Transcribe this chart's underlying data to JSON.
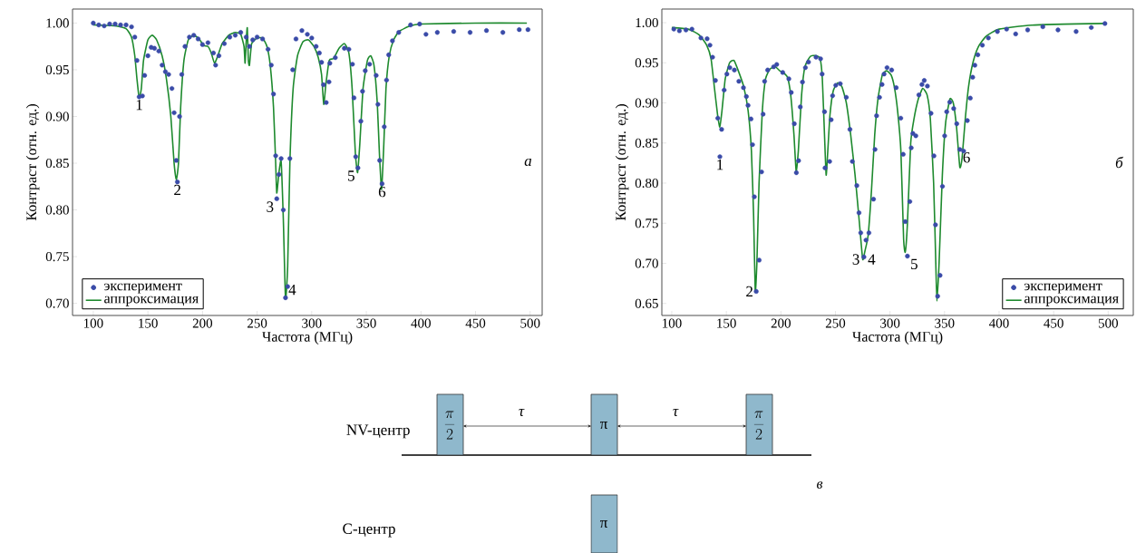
{
  "chart_data": [
    {
      "type": "scatter",
      "xlabel": "Частота (МГц)",
      "ylabel": "Контраст (отн. ед.)",
      "xlim": [
        81,
        511
      ],
      "ylim": [
        0.687,
        1.015
      ],
      "xticks": [
        100,
        150,
        200,
        250,
        300,
        350,
        400,
        450,
        500
      ],
      "yticks": [
        {
          "value": 0.7,
          "label": "0.70"
        },
        {
          "value": 0.75,
          "label": "0.75"
        },
        {
          "value": 0.8,
          "label": "0.80"
        },
        {
          "value": 0.85,
          "label": "0.85"
        },
        {
          "value": 0.9,
          "label": "0.90"
        },
        {
          "value": 0.95,
          "label": "0.95"
        },
        {
          "value": 1.0,
          "label": "1.00"
        }
      ],
      "grid": false,
      "legend": "bottom left",
      "series": [
        {
          "name": "эксперимент",
          "type": "scatter",
          "color": "#3a4ba8",
          "x": [
            100,
            105,
            110,
            115,
            120,
            125,
            130,
            135,
            138,
            140,
            142,
            145,
            147,
            150,
            153,
            156,
            160,
            163,
            166,
            169,
            172,
            174,
            176,
            177,
            179,
            181,
            184,
            188,
            192,
            196,
            200,
            205,
            210,
            212,
            215,
            220,
            225,
            230,
            235,
            240,
            243,
            246,
            250,
            255,
            260,
            263,
            265,
            267,
            268,
            270,
            272,
            274,
            276,
            278,
            280,
            282.6,
            285.6,
            291,
            296,
            300,
            304,
            307,
            309,
            310.8,
            313.3,
            315.8,
            316.6,
            321.6,
            329.9,
            334,
            337.3,
            338.7,
            340.3,
            342.3,
            345,
            346.5,
            349,
            353,
            359,
            360.6,
            362.2,
            364.4,
            366.4,
            368.5,
            370.5,
            373.9,
            379.7,
            390.5,
            398.8,
            404.6,
            415,
            430,
            445,
            460,
            475,
            490,
            498
          ],
          "values": [
            1.0,
            0.998,
            0.997,
            0.999,
            0.999,
            0.998,
            0.998,
            0.996,
            0.985,
            0.96,
            0.921,
            0.922,
            0.944,
            0.965,
            0.974,
            0.973,
            0.97,
            0.955,
            0.948,
            0.945,
            0.93,
            0.904,
            0.853,
            0.83,
            0.9,
            0.945,
            0.975,
            0.985,
            0.987,
            0.983,
            0.977,
            0.979,
            0.968,
            0.955,
            0.965,
            0.978,
            0.985,
            0.987,
            0.99,
            0.985,
            0.975,
            0.982,
            0.985,
            0.983,
            0.972,
            0.955,
            0.924,
            0.858,
            0.812,
            0.838,
            0.855,
            0.8,
            0.706,
            0.718,
            0.855,
            0.95,
            0.983,
            0.992,
            0.988,
            0.984,
            0.975,
            0.968,
            0.958,
            0.934,
            0.915,
            0.937,
            0.957,
            0.963,
            0.973,
            0.972,
            0.956,
            0.92,
            0.857,
            0.845,
            0.895,
            0.927,
            0.949,
            0.956,
            0.944,
            0.913,
            0.853,
            0.828,
            0.889,
            0.939,
            0.966,
            0.981,
            0.99,
            0.998,
            0.999,
            0.988,
            0.99,
            0.991,
            0.99,
            0.992,
            0.99,
            0.993,
            0.993
          ]
        },
        {
          "name": "аппроксимация",
          "type": "line",
          "color": "#1e8a2e",
          "x": [
            100,
            120,
            130,
            135,
            138,
            140,
            142,
            144,
            146,
            150,
            154,
            158,
            163,
            167,
            171,
            174,
            176,
            178,
            180,
            183,
            187,
            192,
            197,
            201,
            205,
            208,
            211,
            214,
            218,
            224,
            230,
            235,
            238,
            239,
            240,
            241,
            242,
            243,
            245,
            250,
            255,
            259,
            262,
            265,
            267,
            268,
            270,
            272,
            274,
            276,
            278,
            280,
            283,
            287,
            292,
            297,
            302,
            306,
            309,
            311,
            313,
            316,
            320,
            325,
            330,
            334,
            337,
            340,
            342,
            344,
            347,
            351,
            354,
            357,
            360,
            362,
            364,
            366,
            368,
            371,
            375,
            380,
            390,
            400,
            450,
            497
          ],
          "values": [
            0.998,
            0.997,
            0.994,
            0.985,
            0.965,
            0.94,
            0.92,
            0.93,
            0.96,
            0.982,
            0.987,
            0.982,
            0.965,
            0.94,
            0.9,
            0.85,
            0.832,
            0.85,
            0.91,
            0.96,
            0.982,
            0.987,
            0.983,
            0.976,
            0.975,
            0.968,
            0.957,
            0.965,
            0.978,
            0.987,
            0.99,
            0.988,
            0.975,
            0.957,
            0.98,
            0.995,
            0.96,
            0.955,
            0.978,
            0.984,
            0.984,
            0.975,
            0.955,
            0.91,
            0.85,
            0.818,
            0.84,
            0.852,
            0.79,
            0.705,
            0.74,
            0.85,
            0.93,
            0.965,
            0.98,
            0.982,
            0.975,
            0.963,
            0.945,
            0.913,
            0.935,
            0.96,
            0.962,
            0.973,
            0.978,
            0.968,
            0.93,
            0.86,
            0.84,
            0.87,
            0.93,
            0.96,
            0.965,
            0.955,
            0.915,
            0.86,
            0.822,
            0.87,
            0.93,
            0.965,
            0.982,
            0.991,
            0.997,
            0.999,
            1.0,
            1.0
          ]
        }
      ],
      "annotations": [
        {
          "text": "1",
          "x": 142,
          "y": 0.921
        },
        {
          "text": "2",
          "x": 177,
          "y": 0.83
        },
        {
          "text": "3",
          "x": 268,
          "y": 0.812
        },
        {
          "text": "4",
          "x": 276,
          "y": 0.706
        },
        {
          "text": "5",
          "x": 342.3,
          "y": 0.845
        },
        {
          "text": "6",
          "x": 364.4,
          "y": 0.828
        },
        "а"
      ]
    },
    {
      "type": "scatter",
      "xlabel": "Частота (МГц)",
      "ylabel": "Контраст (отн. ед.)",
      "xlim": [
        90.9,
        523
      ],
      "ylim": [
        0.635,
        1.017
      ],
      "xticks": [
        100,
        150,
        200,
        250,
        300,
        350,
        400,
        450,
        500
      ],
      "yticks": [
        {
          "value": 0.65,
          "label": "0.65"
        },
        {
          "value": 0.7,
          "label": "0.70"
        },
        {
          "value": 0.75,
          "label": "0.75"
        },
        {
          "value": 0.8,
          "label": "0.80"
        },
        {
          "value": 0.85,
          "label": "0.85"
        },
        {
          "value": 0.9,
          "label": "0.90"
        },
        {
          "value": 0.95,
          "label": "0.95"
        },
        {
          "value": 1.0,
          "label": "1.00"
        }
      ],
      "grid": false,
      "legend": "bottom right",
      "series": [
        {
          "name": "эксперимент",
          "type": "scatter",
          "color": "#3a4ba8",
          "x": [
            101.9,
            107,
            113,
            118.5,
            126.7,
            132.4,
            135,
            137.4,
            140,
            142.2,
            144.1,
            145.7,
            148,
            150.5,
            153.2,
            157.4,
            161.5,
            165.7,
            168.4,
            169.9,
            172.6,
            174,
            175.7,
            177.4,
            180.1,
            182.3,
            183.7,
            185.1,
            187.9,
            193.4,
            196.2,
            201.7,
            207.3,
            209.5,
            212.3,
            214.2,
            216.2,
            217.8,
            219.8,
            222.5,
            225.3,
            232.2,
            236.4,
            237.8,
            240,
            240.5,
            244.7,
            246.1,
            247.4,
            250.3,
            254.4,
            260,
            263.3,
            265.5,
            269.6,
            271.6,
            273.2,
            276.1,
            278,
            280.7,
            284.9,
            286.3,
            287.7,
            290.4,
            292.7,
            294.6,
            297.3,
            301.5,
            305.7,
            309.9,
            312.1,
            314,
            316,
            318.2,
            319.5,
            321,
            323.7,
            326.5,
            329.3,
            331.4,
            334.3,
            337.6,
            340.3,
            341.7,
            343.7,
            345.9,
            348.1,
            350.1,
            352,
            354.8,
            358.4,
            361.2,
            364,
            367.5,
            370.9,
            373.6,
            375.8,
            377.8,
            380.5,
            384.7,
            390.2,
            398.5,
            406.9,
            415.2,
            426.2,
            440.1,
            454,
            470.6,
            484.5,
            497
          ],
          "values": [
            0.992,
            0.99,
            0.991,
            0.992,
            0.981,
            0.98,
            0.972,
            0.957,
            0.928,
            0.881,
            0.833,
            0.867,
            0.916,
            0.936,
            0.944,
            0.941,
            0.927,
            0.919,
            0.908,
            0.897,
            0.88,
            0.848,
            0.783,
            0.665,
            0.704,
            0.814,
            0.886,
            0.927,
            0.941,
            0.945,
            0.948,
            0.938,
            0.93,
            0.913,
            0.874,
            0.813,
            0.828,
            0.895,
            0.926,
            0.944,
            0.951,
            0.957,
            0.955,
            0.936,
            0.889,
            0.819,
            0.827,
            0.879,
            0.909,
            0.922,
            0.924,
            0.907,
            0.867,
            0.827,
            0.797,
            0.763,
            0.738,
            0.708,
            0.729,
            0.738,
            0.78,
            0.842,
            0.884,
            0.907,
            0.923,
            0.936,
            0.944,
            0.941,
            0.919,
            0.881,
            0.836,
            0.752,
            0.709,
            0.777,
            0.844,
            0.862,
            0.859,
            0.91,
            0.923,
            0.928,
            0.921,
            0.887,
            0.834,
            0.748,
            0.659,
            0.685,
            0.796,
            0.859,
            0.889,
            0.901,
            0.893,
            0.874,
            0.842,
            0.84,
            0.878,
            0.906,
            0.932,
            0.947,
            0.96,
            0.972,
            0.981,
            0.989,
            0.992,
            0.986,
            0.991,
            0.995,
            0.991,
            0.989,
            0.994,
            0.999
          ]
        },
        {
          "name": "аппроксимация",
          "type": "line",
          "color": "#1e8a2e",
          "x": [
            100,
            115,
            125,
            132,
            136,
            139,
            142,
            144,
            146,
            149,
            153,
            157,
            161,
            166,
            170,
            173,
            175,
            176.5,
            178,
            180,
            183,
            186,
            190,
            195,
            199,
            202,
            206,
            209,
            212,
            214,
            216,
            219,
            222,
            227,
            232,
            236,
            238,
            240,
            241.5,
            243,
            245,
            248,
            252,
            256,
            260,
            264,
            268,
            272,
            275,
            277,
            280,
            283,
            286,
            289,
            293,
            297,
            301,
            304,
            307,
            310,
            312.5,
            314,
            316,
            319,
            322,
            326,
            330,
            334,
            337,
            340,
            342,
            343,
            345,
            348,
            351,
            355,
            358,
            361,
            364,
            366,
            369,
            372,
            376,
            381,
            388,
            400,
            430,
            497
          ],
          "values": [
            0.994,
            0.992,
            0.985,
            0.972,
            0.955,
            0.92,
            0.885,
            0.87,
            0.89,
            0.93,
            0.95,
            0.953,
            0.94,
            0.92,
            0.89,
            0.84,
            0.76,
            0.665,
            0.7,
            0.8,
            0.89,
            0.93,
            0.942,
            0.945,
            0.94,
            0.938,
            0.932,
            0.91,
            0.86,
            0.815,
            0.84,
            0.91,
            0.945,
            0.958,
            0.959,
            0.955,
            0.93,
            0.86,
            0.81,
            0.84,
            0.885,
            0.915,
            0.925,
            0.92,
            0.9,
            0.86,
            0.81,
            0.75,
            0.705,
            0.715,
            0.735,
            0.79,
            0.86,
            0.905,
            0.935,
            0.94,
            0.935,
            0.92,
            0.89,
            0.84,
            0.73,
            0.714,
            0.75,
            0.85,
            0.88,
            0.905,
            0.918,
            0.91,
            0.88,
            0.8,
            0.7,
            0.653,
            0.7,
            0.81,
            0.875,
            0.905,
            0.9,
            0.87,
            0.82,
            0.83,
            0.88,
            0.92,
            0.95,
            0.97,
            0.983,
            0.992,
            0.997,
            0.999
          ]
        }
      ],
      "annotations": [
        {
          "text": "1",
          "x": 144.1,
          "y": 0.833
        },
        {
          "text": "2",
          "x": 177.4,
          "y": 0.665
        },
        {
          "text": "3",
          "x": 275,
          "y": 0.705
        },
        {
          "text": "4",
          "x": 277,
          "y": 0.705
        },
        {
          "text": "5",
          "x": 316,
          "y": 0.709
        },
        {
          "text": "6",
          "x": 364,
          "y": 0.842
        },
        "б"
      ]
    },
    {
      "type": "other",
      "annotations": [
        "NV-центр",
        "C-центр",
        "\\frac{\\pi}{2}",
        "π",
        "\\frac{\\pi}{2}",
        "π",
        "τ",
        "τ",
        "в"
      ]
    }
  ]
}
